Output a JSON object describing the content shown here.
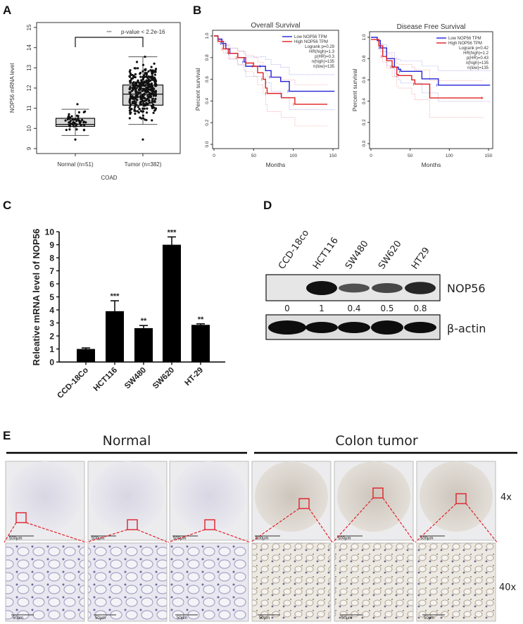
{
  "panels": {
    "a": "A",
    "b": "B",
    "c": "C",
    "d": "D",
    "e": "E"
  },
  "colors": {
    "low": "#2323d8",
    "high": "#e02020",
    "box_fill": "#d9d9d9",
    "red_box": "#e0202a"
  },
  "chart_data": [
    {
      "type": "box",
      "id": "A",
      "title": "",
      "ylabel": "NOP56 mRNA level",
      "xlabel": "COAD",
      "ylim": [
        9,
        15
      ],
      "yticks": [
        "9",
        "10",
        "11",
        "12",
        "13",
        "14",
        "15"
      ],
      "categories": [
        "Normal (n=51)",
        "Tumor (n=382)"
      ],
      "n": [
        51,
        382
      ],
      "boxes": [
        {
          "name": "Normal",
          "whisker_low": 9.65,
          "q1": 10.1,
          "median": 10.2,
          "q3": 10.5,
          "whisker_high": 10.95,
          "min_point": 9.45,
          "max_point": 11.2
        },
        {
          "name": "Tumor",
          "whisker_low": 10.2,
          "q1": 11.15,
          "median": 11.7,
          "q3": 12.15,
          "whisker_high": 13.55,
          "min_point": 9.45,
          "max_point": 13.55
        }
      ],
      "annotation": {
        "stars": "***",
        "text": "p-value < 2.2e-16"
      }
    },
    {
      "type": "line",
      "id": "B-os",
      "title": "Overall Survival",
      "xlabel": "Months",
      "ylabel": "Percent survival",
      "xlim": [
        0,
        150
      ],
      "ylim": [
        0,
        1
      ],
      "xticks": [
        "0",
        "50",
        "100",
        "150"
      ],
      "yticks": [
        "0.0",
        "0.2",
        "0.4",
        "0.6",
        "0.8",
        "1.0"
      ],
      "legend": [
        "Low NOP56 TPM",
        "High NOP56 TPM"
      ],
      "stats": [
        "Logrank p=0.29",
        "HR(high)=1.3",
        "p(HR)=0.3",
        "n(high)=135",
        "n(low)=135"
      ],
      "series": [
        {
          "name": "Low NOP56 TPM",
          "color": "low",
          "x": [
            0,
            5,
            10,
            15,
            20,
            30,
            38,
            40,
            60,
            65,
            72,
            84,
            95,
            152
          ],
          "y": [
            1,
            0.97,
            0.93,
            0.88,
            0.84,
            0.8,
            0.76,
            0.72,
            0.72,
            0.68,
            0.62,
            0.58,
            0.49,
            0.49
          ]
        },
        {
          "name": "High NOP56 TPM",
          "color": "high",
          "x": [
            0,
            5,
            12,
            18,
            30,
            40,
            50,
            55,
            62,
            65,
            67,
            85,
            102,
            143
          ],
          "y": [
            1,
            0.95,
            0.88,
            0.84,
            0.8,
            0.75,
            0.72,
            0.66,
            0.6,
            0.52,
            0.47,
            0.43,
            0.37,
            0.37
          ]
        }
      ]
    },
    {
      "type": "line",
      "id": "B-dfs",
      "title": "Disease Free Survival",
      "xlabel": "Months",
      "ylabel": "Percent survival",
      "xlim": [
        0,
        150
      ],
      "ylim": [
        0,
        1
      ],
      "xticks": [
        "0",
        "50",
        "100",
        "150"
      ],
      "yticks": [
        "0.0",
        "0.2",
        "0.4",
        "0.6",
        "0.8",
        "1.0"
      ],
      "legend": [
        "Low NOP56 TPM",
        "High NOP56 TPM"
      ],
      "stats": [
        "Logrank p=0.42",
        "HR(high)=1.2",
        "p(HR)=0.43",
        "n(high)=135",
        "n(low)=135"
      ],
      "series": [
        {
          "name": "Low NOP56 TPM",
          "color": "low",
          "x": [
            0,
            8,
            12,
            20,
            30,
            35,
            38,
            65,
            86,
            152
          ],
          "y": [
            1,
            0.97,
            0.9,
            0.8,
            0.72,
            0.7,
            0.68,
            0.61,
            0.55,
            0.55
          ]
        },
        {
          "name": "High NOP56 TPM",
          "color": "high",
          "x": [
            0,
            10,
            15,
            20,
            27,
            33,
            35,
            52,
            56,
            75,
            143
          ],
          "y": [
            0.98,
            0.92,
            0.82,
            0.78,
            0.72,
            0.65,
            0.64,
            0.6,
            0.56,
            0.43,
            0.43
          ]
        }
      ]
    },
    {
      "type": "bar",
      "id": "C",
      "ylabel": "Releative mRNA level of NOP56",
      "ylim": [
        0,
        10
      ],
      "yticks": [
        "0",
        "1",
        "2",
        "3",
        "4",
        "5",
        "6",
        "7",
        "8",
        "9",
        "10"
      ],
      "categories": [
        "CCD-18Co",
        "HCT116",
        "SW480",
        "SW620",
        "HT-29"
      ],
      "values": [
        1.0,
        3.9,
        2.6,
        9.0,
        2.85
      ],
      "errors": [
        0.08,
        0.8,
        0.2,
        0.6,
        0.08
      ],
      "significance": [
        "",
        "***",
        "**",
        "***",
        "**"
      ]
    }
  ],
  "western_blot": {
    "lanes": [
      "CCD-18co",
      "HCT116",
      "SW480",
      "SW620",
      "HT29"
    ],
    "quantification": [
      "0",
      "1",
      "0.4",
      "0.5",
      "0.8"
    ],
    "band_intensity": [
      0,
      1,
      0.4,
      0.5,
      0.8
    ],
    "rows": [
      "NOP56",
      "β-actin"
    ]
  },
  "ihc": {
    "groups": [
      "Normal",
      "Colon tumor"
    ],
    "magnifications": [
      "4x",
      "40x"
    ],
    "scale_top": "500μm",
    "scale_bottom": "50μm"
  }
}
